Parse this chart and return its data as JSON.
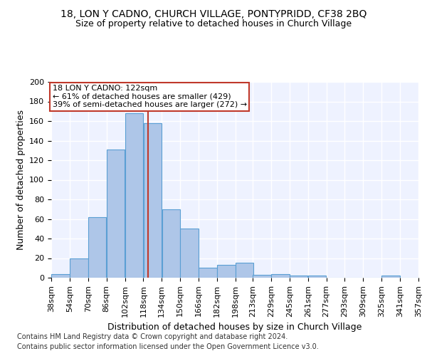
{
  "title1": "18, LON Y CADNO, CHURCH VILLAGE, PONTYPRIDD, CF38 2BQ",
  "title2": "Size of property relative to detached houses in Church Village",
  "xlabel": "Distribution of detached houses by size in Church Village",
  "ylabel": "Number of detached properties",
  "footnote1": "Contains HM Land Registry data © Crown copyright and database right 2024.",
  "footnote2": "Contains public sector information licensed under the Open Government Licence v3.0.",
  "bin_edges": [
    38,
    54,
    70,
    86,
    102,
    118,
    134,
    150,
    166,
    182,
    198,
    213,
    229,
    245,
    261,
    277,
    293,
    309,
    325,
    341,
    357
  ],
  "bar_heights": [
    4,
    20,
    62,
    131,
    168,
    158,
    70,
    50,
    10,
    13,
    15,
    3,
    4,
    2,
    2,
    0,
    0,
    0,
    2,
    0
  ],
  "bar_color": "#aec6e8",
  "bar_edge_color": "#5a9fd4",
  "vline_x": 122,
  "vline_color": "#c0392b",
  "annotation_text": "18 LON Y CADNO: 122sqm\n← 61% of detached houses are smaller (429)\n39% of semi-detached houses are larger (272) →",
  "annotation_box_color": "white",
  "annotation_box_edge_color": "#c0392b",
  "ylim": [
    0,
    200
  ],
  "background_color": "#eef2ff",
  "grid_color": "white",
  "title1_fontsize": 10,
  "title2_fontsize": 9,
  "xlabel_fontsize": 9,
  "ylabel_fontsize": 9,
  "tick_fontsize": 8,
  "footnote_fontsize": 7,
  "annot_fontsize": 8
}
